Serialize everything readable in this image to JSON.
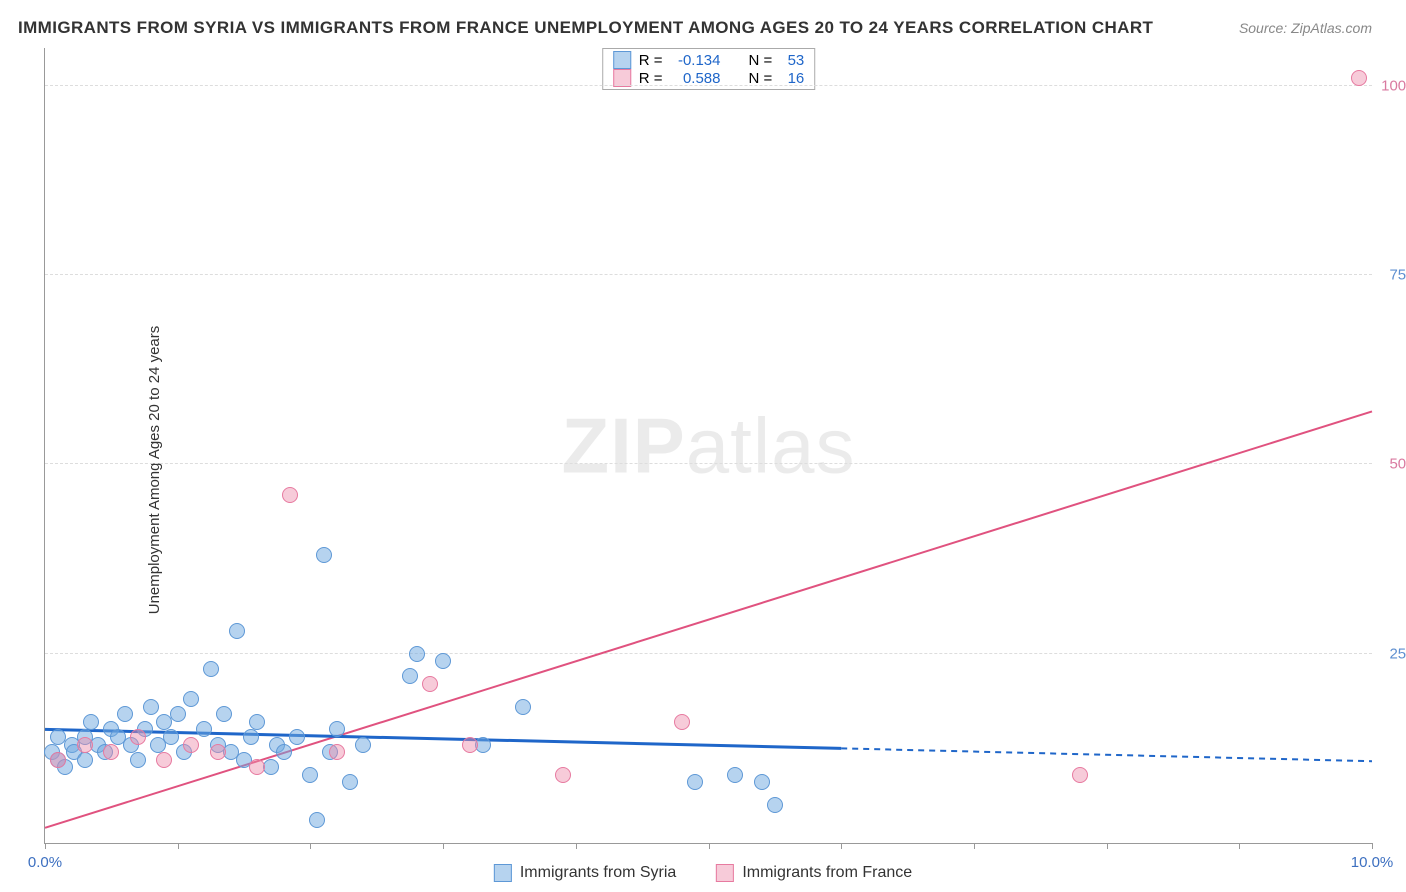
{
  "title": "IMMIGRANTS FROM SYRIA VS IMMIGRANTS FROM FRANCE UNEMPLOYMENT AMONG AGES 20 TO 24 YEARS CORRELATION CHART",
  "source": "Source: ZipAtlas.com",
  "y_label": "Unemployment Among Ages 20 to 24 years",
  "watermark_bold": "ZIP",
  "watermark_rest": "atlas",
  "colors": {
    "series_a_fill": "rgba(110,168,224,0.5)",
    "series_a_stroke": "#5e98d6",
    "series_a_line": "#1f66c9",
    "series_b_fill": "rgba(238,140,170,0.45)",
    "series_b_stroke": "#e77aa0",
    "series_b_line": "#e0527f",
    "ytick_a": "#5e8fd0",
    "ytick_b": "#d97aa0",
    "xtick": "#3c6fc0"
  },
  "chart": {
    "type": "scatter",
    "xlim": [
      0,
      10
    ],
    "ylim": [
      0,
      105
    ],
    "x_ticks": [
      0,
      1,
      2,
      3,
      4,
      5,
      6,
      7,
      8,
      9,
      10
    ],
    "x_tick_labels": {
      "0": "0.0%",
      "10": "10.0%"
    },
    "y_ticks": [
      25,
      50,
      75,
      100
    ],
    "y_tick_labels": [
      "25.0%",
      "50.0%",
      "75.0%",
      "100.0%"
    ],
    "marker_radius": 8,
    "line_width_a": 3,
    "line_width_b": 2,
    "background": "#ffffff",
    "grid_color": "#dddddd"
  },
  "series": [
    {
      "key": "a",
      "name": "Immigrants from Syria",
      "R": "-0.134",
      "N": "53",
      "trend": {
        "x1": 0,
        "y1": 15,
        "x2": 6,
        "y2": 12.5,
        "dash_to_x": 10,
        "dash_to_y": 10.8
      },
      "points": [
        [
          0.05,
          12
        ],
        [
          0.1,
          11
        ],
        [
          0.1,
          14
        ],
        [
          0.15,
          10
        ],
        [
          0.2,
          13
        ],
        [
          0.22,
          12
        ],
        [
          0.3,
          11
        ],
        [
          0.3,
          14
        ],
        [
          0.35,
          16
        ],
        [
          0.4,
          13
        ],
        [
          0.45,
          12
        ],
        [
          0.5,
          15
        ],
        [
          0.55,
          14
        ],
        [
          0.6,
          17
        ],
        [
          0.65,
          13
        ],
        [
          0.7,
          11
        ],
        [
          0.75,
          15
        ],
        [
          0.8,
          18
        ],
        [
          0.85,
          13
        ],
        [
          0.9,
          16
        ],
        [
          0.95,
          14
        ],
        [
          1.0,
          17
        ],
        [
          1.05,
          12
        ],
        [
          1.1,
          19
        ],
        [
          1.2,
          15
        ],
        [
          1.25,
          23
        ],
        [
          1.3,
          13
        ],
        [
          1.35,
          17
        ],
        [
          1.4,
          12
        ],
        [
          1.45,
          28
        ],
        [
          1.5,
          11
        ],
        [
          1.55,
          14
        ],
        [
          1.6,
          16
        ],
        [
          1.7,
          10
        ],
        [
          1.75,
          13
        ],
        [
          1.8,
          12
        ],
        [
          1.9,
          14
        ],
        [
          2.0,
          9
        ],
        [
          2.05,
          3
        ],
        [
          2.1,
          38
        ],
        [
          2.15,
          12
        ],
        [
          2.2,
          15
        ],
        [
          2.3,
          8
        ],
        [
          2.4,
          13
        ],
        [
          2.75,
          22
        ],
        [
          2.8,
          25
        ],
        [
          3.0,
          24
        ],
        [
          3.3,
          13
        ],
        [
          3.6,
          18
        ],
        [
          4.9,
          8
        ],
        [
          5.2,
          9
        ],
        [
          5.4,
          8
        ],
        [
          5.5,
          5
        ]
      ]
    },
    {
      "key": "b",
      "name": "Immigrants from France",
      "R": "0.588",
      "N": "16",
      "trend": {
        "x1": 0,
        "y1": 2,
        "x2": 10,
        "y2": 57
      },
      "points": [
        [
          0.1,
          11
        ],
        [
          0.3,
          13
        ],
        [
          0.5,
          12
        ],
        [
          0.7,
          14
        ],
        [
          0.9,
          11
        ],
        [
          1.1,
          13
        ],
        [
          1.3,
          12
        ],
        [
          1.6,
          10
        ],
        [
          1.85,
          46
        ],
        [
          2.2,
          12
        ],
        [
          2.9,
          21
        ],
        [
          3.2,
          13
        ],
        [
          3.9,
          9
        ],
        [
          4.8,
          16
        ],
        [
          7.8,
          9
        ],
        [
          9.9,
          101
        ]
      ]
    }
  ],
  "legend_labels": {
    "R_label": "R =",
    "N_label": "N ="
  }
}
